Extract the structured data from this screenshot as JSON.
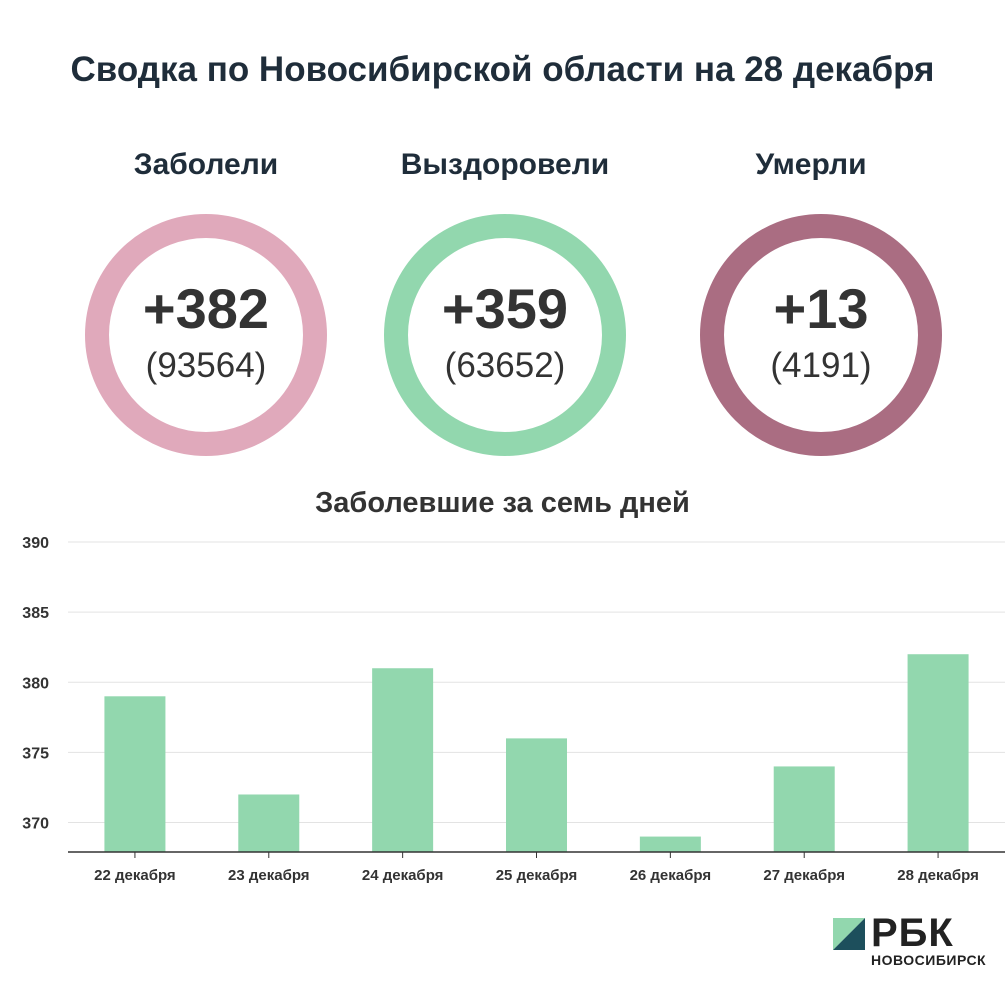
{
  "header": {
    "title": "Сводка по Новосибирской области на 28 декабря"
  },
  "stats": [
    {
      "label": "Заболели",
      "delta": "+382",
      "total": "(93564)",
      "color": "#e0a9bb"
    },
    {
      "label": "Выздоровели",
      "delta": "+359",
      "total": "(63652)",
      "color": "#92d7ae"
    },
    {
      "label": "Умерли",
      "delta": "+13",
      "total": "(4191)",
      "color": "#aa6d82"
    }
  ],
  "chart_data": {
    "type": "bar",
    "title": "Заболевшие за семь дней",
    "categories": [
      "22 декабря",
      "23 декабря",
      "24 декабря",
      "25 декабря",
      "26 декабря",
      "27 декабря",
      "28 декабря"
    ],
    "values": [
      379,
      372,
      381,
      376,
      369,
      374,
      382
    ],
    "yticks": [
      370,
      375,
      380,
      385,
      390
    ],
    "ylim": [
      367.9,
      390
    ],
    "grid": true,
    "bar_color": "#92d7ae"
  },
  "logo": {
    "text": "РБК",
    "subtitle": "НОВОСИБИРСК",
    "mark_dark": "#1d4f5c",
    "mark_light": "#92d7ae"
  }
}
